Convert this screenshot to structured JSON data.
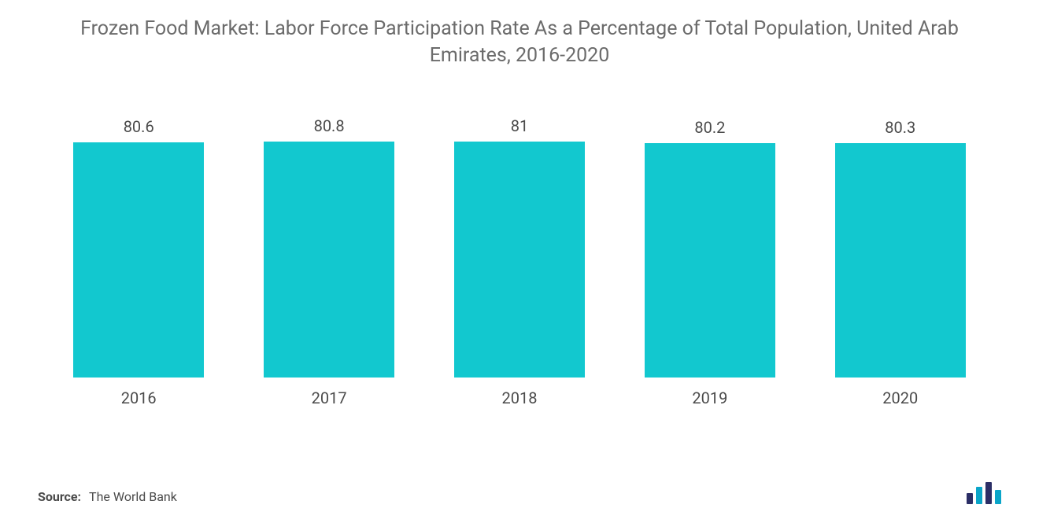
{
  "title": "Frozen Food Market: Labor Force Participation Rate As a Percentage of Total Population, United Arab Emirates, 2016-2020",
  "title_fontsize": 25,
  "title_color": "#6b6b6b",
  "chart": {
    "type": "bar",
    "categories": [
      "2016",
      "2017",
      "2018",
      "2019",
      "2020"
    ],
    "values": [
      80.6,
      80.8,
      81,
      80.2,
      80.3
    ],
    "bar_color": "#12c8cf",
    "value_label_color": "#4a4a4a",
    "value_label_fontsize": 20,
    "category_label_color": "#4a4a4a",
    "category_label_fontsize": 20,
    "background_color": "#ffffff",
    "ylim": [
      0,
      81
    ],
    "bar_width_ratio": 0.78
  },
  "source": {
    "label": "Source:",
    "text": "The World Bank",
    "color": "#4a4a4a",
    "fontsize": 16
  },
  "logo": {
    "bars": [
      {
        "h": 14,
        "color": "#2b2e66"
      },
      {
        "h": 22,
        "color": "#0aa5c9"
      },
      {
        "h": 28,
        "color": "#2b2e66"
      },
      {
        "h": 18,
        "color": "#0aa5c9"
      }
    ]
  }
}
